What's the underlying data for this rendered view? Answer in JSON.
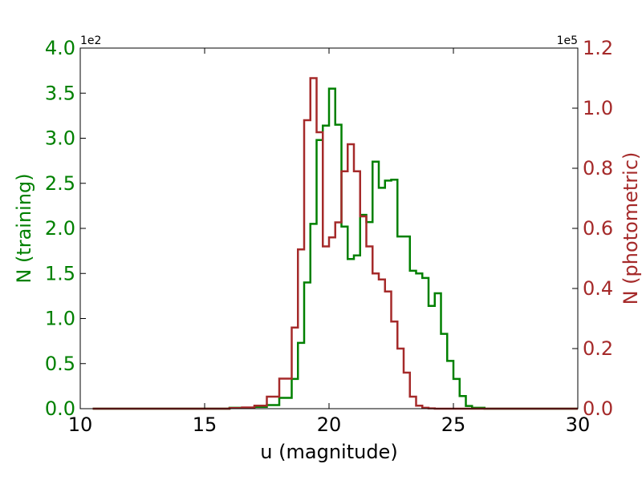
{
  "chart_data": {
    "type": "histogram",
    "xlabel": "u (magnitude)",
    "xlim": [
      10,
      30
    ],
    "x_ticks": [
      10,
      15,
      20,
      25,
      30
    ],
    "x_tick_labels": [
      "10",
      "15",
      "20",
      "25",
      "30"
    ],
    "bin_width": 0.5,
    "grid": false,
    "legend": "none",
    "axes": [
      {
        "side": "left",
        "ylabel": "N (training)",
        "color": "#008000",
        "multiplier_label": "1e2",
        "ylim": [
          0,
          4.0
        ],
        "ticks": [
          0,
          0.5,
          1.0,
          1.5,
          2.0,
          2.5,
          3.0,
          3.5,
          4.0
        ],
        "tick_labels": [
          "0.0",
          "0.5",
          "1.0",
          "1.5",
          "2.0",
          "2.5",
          "3.0",
          "3.5",
          "4.0"
        ]
      },
      {
        "side": "right",
        "ylabel": "N (photometric)",
        "color": "#a52a2a",
        "multiplier_label": "1e5",
        "ylim": [
          0,
          1.2
        ],
        "ticks": [
          0,
          0.2,
          0.4,
          0.6,
          0.8,
          1.0,
          1.2
        ],
        "tick_labels": [
          "0.0",
          "0.2",
          "0.4",
          "0.6",
          "0.8",
          "1.0",
          "1.2"
        ]
      }
    ],
    "series": [
      {
        "axis": "left",
        "color": "#008000",
        "x": [
          10.5,
          16.0,
          16.5,
          17.0,
          17.5,
          18.0,
          18.5,
          18.75,
          19.0,
          19.25,
          19.5,
          19.75,
          20.0,
          20.25,
          20.5,
          20.75,
          21.0,
          21.25,
          21.5,
          21.75,
          22.0,
          22.25,
          22.5,
          22.75,
          23.0,
          23.25,
          23.5,
          23.75,
          24.0,
          24.25,
          24.5,
          24.75,
          25.0,
          25.25,
          25.5,
          25.75,
          26.0,
          26.25,
          26.5,
          26.75,
          27.0,
          27.5,
          28.0,
          28.5,
          29.0,
          29.5,
          30.0
        ],
        "values": [
          0.0,
          0.01,
          0.01,
          0.02,
          0.04,
          0.12,
          0.33,
          0.73,
          1.4,
          2.05,
          2.98,
          3.14,
          3.55,
          3.15,
          2.02,
          1.66,
          1.7,
          2.15,
          2.07,
          2.74,
          2.45,
          2.53,
          2.54,
          1.91,
          1.91,
          1.53,
          1.5,
          1.45,
          1.14,
          1.28,
          0.83,
          0.53,
          0.33,
          0.14,
          0.03,
          0.01,
          0.01,
          0.0,
          0.0,
          0.0,
          0.0,
          0.0,
          0.0,
          0.0,
          0.0,
          0.0
        ]
      },
      {
        "axis": "right",
        "color": "#a52a2a",
        "x": [
          10.5,
          16.0,
          16.5,
          17.0,
          17.5,
          18.0,
          18.5,
          18.75,
          19.0,
          19.25,
          19.5,
          19.75,
          20.0,
          20.25,
          20.5,
          20.75,
          21.0,
          21.25,
          21.5,
          21.75,
          22.0,
          22.25,
          22.5,
          22.75,
          23.0,
          23.25,
          23.5,
          23.75,
          24.0,
          24.25,
          24.5,
          24.75,
          25.0,
          25.25,
          25.5,
          25.75,
          26.0,
          26.25,
          26.5,
          26.75,
          27.0,
          27.5,
          28.0,
          28.5,
          29.0,
          29.5,
          30.0
        ],
        "values": [
          0.0,
          0.002,
          0.004,
          0.01,
          0.04,
          0.1,
          0.27,
          0.53,
          0.96,
          1.1,
          0.92,
          0.54,
          0.57,
          0.62,
          0.79,
          0.88,
          0.79,
          0.64,
          0.54,
          0.45,
          0.43,
          0.39,
          0.29,
          0.2,
          0.12,
          0.04,
          0.01,
          0.003,
          0.001,
          0.0,
          0.0,
          0.0,
          0.0,
          0.0,
          0.0,
          0.0,
          0.0,
          0.0,
          0.0,
          0.0,
          0.0,
          0.0,
          0.0,
          0.0,
          0.0,
          0.0
        ]
      }
    ]
  }
}
